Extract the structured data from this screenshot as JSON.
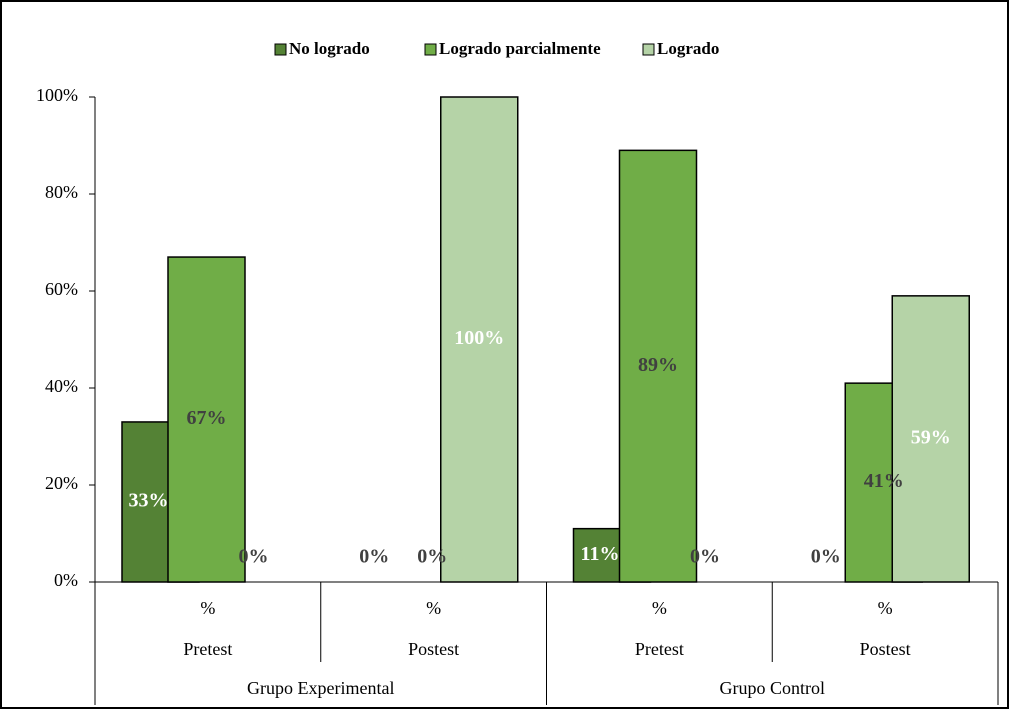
{
  "chart_data": {
    "type": "bar",
    "categories": [
      "%",
      "%",
      "%",
      "%"
    ],
    "subcategories": [
      "Pretest",
      "Postest",
      "Pretest",
      "Postest"
    ],
    "groups": [
      "Grupo Experimental",
      "Grupo Control"
    ],
    "series": [
      {
        "name": "No logrado",
        "color": "#548235",
        "values": [
          33,
          0,
          11,
          0
        ],
        "value_labels": [
          "33%",
          "0%",
          "11%",
          "0%"
        ]
      },
      {
        "name": "Logrado parcialmente",
        "color": "#70ad47",
        "values": [
          67,
          0,
          89,
          41
        ],
        "value_labels": [
          "67%",
          "0%",
          "89%",
          "41%"
        ]
      },
      {
        "name": "Logrado",
        "color": "#b5d3a7",
        "values": [
          0,
          100,
          0,
          59
        ],
        "value_labels": [
          "0%",
          "100%",
          "0%",
          "59%"
        ]
      }
    ],
    "ylim": [
      0,
      100
    ],
    "yticks": [
      {
        "value": 0,
        "label": "0%"
      },
      {
        "value": 20,
        "label": "20%"
      },
      {
        "value": 40,
        "label": "40%"
      },
      {
        "value": 60,
        "label": "60%"
      },
      {
        "value": 80,
        "label": "80%"
      },
      {
        "value": 100,
        "label": "100%"
      }
    ],
    "grid": false,
    "legend": "top"
  }
}
